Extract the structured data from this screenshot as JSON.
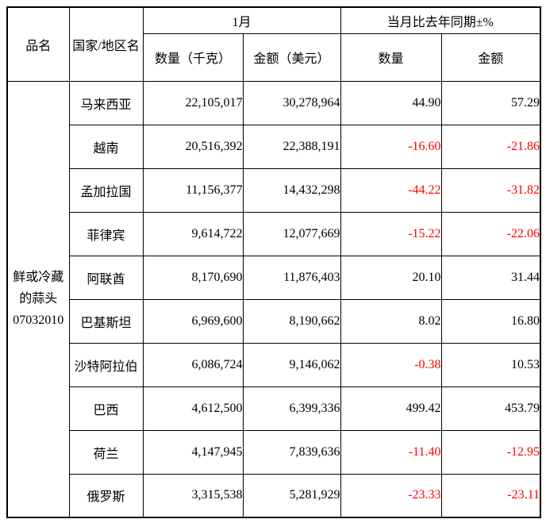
{
  "table": {
    "header": {
      "product": "品名",
      "country": "国家/地区名",
      "month_group": "1月",
      "qty_kg": "数量（千克）",
      "amount_usd": "金额（美元）",
      "yoy_group": "当月比去年同期±%",
      "yoy_qty": "数量",
      "yoy_amount": "金额"
    },
    "product": {
      "name": "鲜或冷藏的蒜头",
      "code": "07032010"
    },
    "rows": [
      {
        "country": "马来西亚",
        "qty": "22,105,017",
        "amount": "30,278,964",
        "yoy_qty": "44.90",
        "yoy_amount": "57.29"
      },
      {
        "country": "越南",
        "qty": "20,516,392",
        "amount": "22,388,191",
        "yoy_qty": "-16.60",
        "yoy_amount": "-21.86"
      },
      {
        "country": "孟加拉国",
        "qty": "11,156,377",
        "amount": "14,432,298",
        "yoy_qty": "-44.22",
        "yoy_amount": "-31.82"
      },
      {
        "country": "菲律宾",
        "qty": "9,614,722",
        "amount": "12,077,669",
        "yoy_qty": "-15.22",
        "yoy_amount": "-22.06"
      },
      {
        "country": "阿联酋",
        "qty": "8,170,690",
        "amount": "11,876,403",
        "yoy_qty": "20.10",
        "yoy_amount": "31.44"
      },
      {
        "country": "巴基斯坦",
        "qty": "6,969,600",
        "amount": "8,190,662",
        "yoy_qty": "8.02",
        "yoy_amount": "16.80"
      },
      {
        "country": "沙特阿拉伯",
        "qty": "6,086,724",
        "amount": "9,146,062",
        "yoy_qty": "-0.38",
        "yoy_amount": "10.53"
      },
      {
        "country": "巴西",
        "qty": "4,612,500",
        "amount": "6,399,336",
        "yoy_qty": "499.42",
        "yoy_amount": "453.79"
      },
      {
        "country": "荷兰",
        "qty": "4,147,945",
        "amount": "7,839,636",
        "yoy_qty": "-11.40",
        "yoy_amount": "-12.95"
      },
      {
        "country": "俄罗斯",
        "qty": "3,315,538",
        "amount": "5,281,929",
        "yoy_qty": "-23.33",
        "yoy_amount": "-23.11"
      }
    ],
    "colors": {
      "text": "#000000",
      "negative": "#FF0000",
      "border": "#000000",
      "background": "#FFFFFF"
    }
  }
}
